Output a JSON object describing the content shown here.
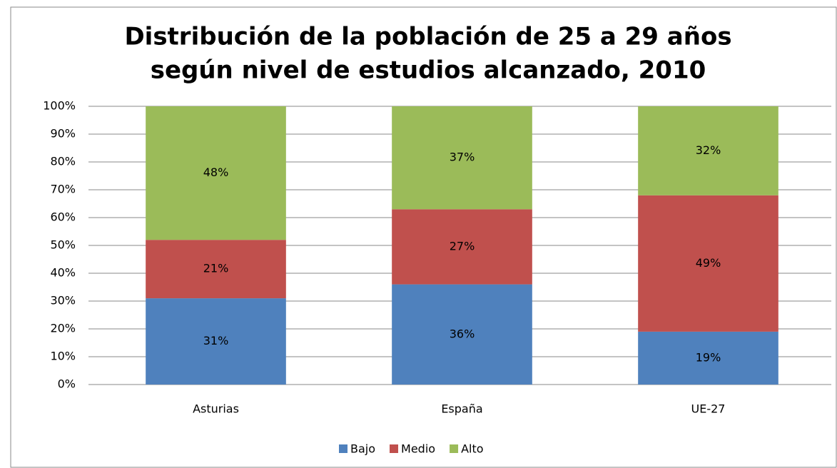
{
  "chart_data": {
    "type": "stacked_bar",
    "title": [
      "Distribución de la población de 25 a 29 años",
      "según nivel de estudios alcanzado, 2010"
    ],
    "categories": [
      "Asturias",
      "España",
      "UE-27"
    ],
    "series": [
      {
        "name": "Bajo",
        "color": "#4f81bd",
        "values": [
          31,
          36,
          19
        ],
        "value_labels": [
          "31%",
          "36%",
          "19%"
        ]
      },
      {
        "name": "Medio",
        "color": "#c0504d",
        "values": [
          21,
          27,
          49
        ],
        "value_labels": [
          "21%",
          "27%",
          "49%"
        ]
      },
      {
        "name": "Alto",
        "color": "#9bbb59",
        "values": [
          48,
          37,
          32
        ],
        "value_labels": [
          "48%",
          "37%",
          "32%"
        ]
      }
    ],
    "ylim": [
      0,
      100
    ],
    "yticks": [
      {
        "value": 0,
        "label": "0%"
      },
      {
        "value": 10,
        "label": "10%"
      },
      {
        "value": 20,
        "label": "20%"
      },
      {
        "value": 30,
        "label": "30%"
      },
      {
        "value": 40,
        "label": "40%"
      },
      {
        "value": 50,
        "label": "50%"
      },
      {
        "value": 60,
        "label": "60%"
      },
      {
        "value": 70,
        "label": "70%"
      },
      {
        "value": 80,
        "label": "80%"
      },
      {
        "value": 90,
        "label": "90%"
      },
      {
        "value": 100,
        "label": "100%"
      }
    ],
    "grid": true,
    "legend": "bottom"
  }
}
